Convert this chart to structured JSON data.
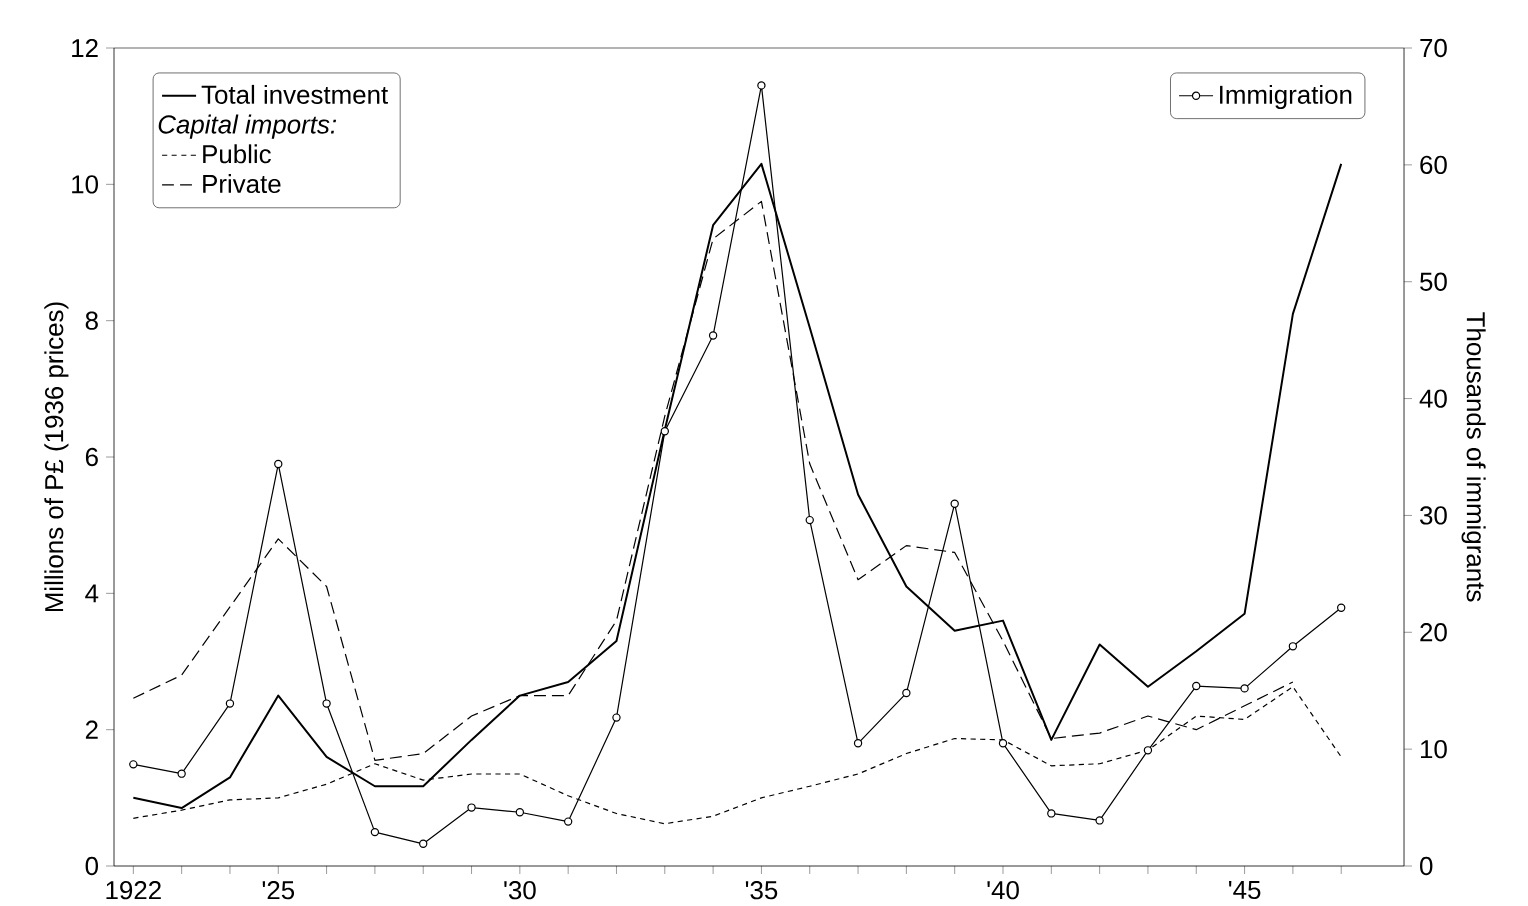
{
  "chart_data": {
    "type": "line",
    "xlabel": null,
    "ylabel": "Millions of P£ (1936 prices)",
    "y2label": "Thousands of immigrants",
    "legend_title": "*Capital imports:*",
    "x": [
      1922,
      1923,
      1924,
      1925,
      1926,
      1927,
      1928,
      1929,
      1930,
      1931,
      1932,
      1933,
      1934,
      1935,
      1936,
      1937,
      1938,
      1939,
      1940,
      1941,
      1942,
      1943,
      1944,
      1945,
      1946,
      1947
    ],
    "series": [
      {
        "name": "Total investment",
        "color": "#000000",
        "line_style": "solid",
        "marker": "none",
        "values": [
          1.0,
          0.85,
          1.3,
          2.5,
          1.6,
          1.17,
          1.17,
          1.85,
          2.5,
          2.7,
          3.3,
          6.4,
          9.4,
          10.3,
          7.9,
          5.45,
          4.1,
          3.45,
          3.6,
          1.85,
          3.25,
          2.63,
          3.15,
          3.7,
          8.1,
          10.3
        ]
      },
      {
        "name": "Public",
        "color": "#000000",
        "line_style": "dotted",
        "marker": "none",
        "values": [
          0.7,
          0.82,
          0.97,
          1.0,
          1.2,
          1.5,
          1.26,
          1.35,
          1.35,
          1.03,
          0.77,
          0.62,
          0.73,
          1.0,
          1.17,
          1.35,
          1.65,
          1.87,
          1.85,
          1.47,
          1.5,
          1.7,
          2.2,
          2.15,
          2.63,
          1.6
        ]
      },
      {
        "name": "Private",
        "color": "#000000",
        "line_style": "dashed",
        "marker": "none",
        "values": [
          2.46,
          2.8,
          3.8,
          4.8,
          4.1,
          1.55,
          1.65,
          2.2,
          2.5,
          2.5,
          3.6,
          6.6,
          9.2,
          9.75,
          5.9,
          4.2,
          4.7,
          4.6,
          3.3,
          1.87,
          1.95,
          2.2,
          2.0,
          2.35,
          2.7,
          null
        ]
      },
      {
        "name": "Immigration",
        "color": "#000000",
        "line_style": "solid",
        "marker": "circle",
        "axis": "y2",
        "values": [
          8.7,
          7.9,
          13.9,
          34.4,
          13.9,
          2.9,
          1.9,
          5.0,
          4.6,
          3.8,
          12.7,
          37.2,
          45.4,
          66.8,
          29.6,
          10.5,
          14.8,
          31.0,
          10.5,
          4.5,
          3.9,
          9.9,
          15.4,
          15.2,
          18.8,
          22.1
        ]
      }
    ],
    "xlim": [
      1921.6,
      1948.3
    ],
    "xticks": [
      {
        "value": 1922,
        "label": "1922"
      },
      {
        "value": 1923,
        "label": null
      },
      {
        "value": 1924,
        "label": null
      },
      {
        "value": 1925,
        "label": "'25"
      },
      {
        "value": 1926,
        "label": null
      },
      {
        "value": 1927,
        "label": null
      },
      {
        "value": 1928,
        "label": null
      },
      {
        "value": 1929,
        "label": null
      },
      {
        "value": 1930,
        "label": "'30"
      },
      {
        "value": 1931,
        "label": null
      },
      {
        "value": 1932,
        "label": null
      },
      {
        "value": 1933,
        "label": null
      },
      {
        "value": 1934,
        "label": null
      },
      {
        "value": 1935,
        "label": "'35"
      },
      {
        "value": 1936,
        "label": null
      },
      {
        "value": 1937,
        "label": null
      },
      {
        "value": 1938,
        "label": null
      },
      {
        "value": 1939,
        "label": null
      },
      {
        "value": 1940,
        "label": "'40"
      },
      {
        "value": 1941,
        "label": null
      },
      {
        "value": 1942,
        "label": null
      },
      {
        "value": 1943,
        "label": null
      },
      {
        "value": 1944,
        "label": null
      },
      {
        "value": 1945,
        "label": "'45"
      },
      {
        "value": 1946,
        "label": null
      },
      {
        "value": 1947,
        "label": null
      }
    ],
    "ylim": [
      0,
      12
    ],
    "yticks": [
      0,
      2,
      4,
      6,
      8,
      10,
      12
    ],
    "y2lim": [
      0,
      70
    ],
    "y2ticks": [
      0,
      10,
      20,
      30,
      40,
      50,
      60,
      70
    ],
    "grid": false,
    "legend": "top"
  }
}
